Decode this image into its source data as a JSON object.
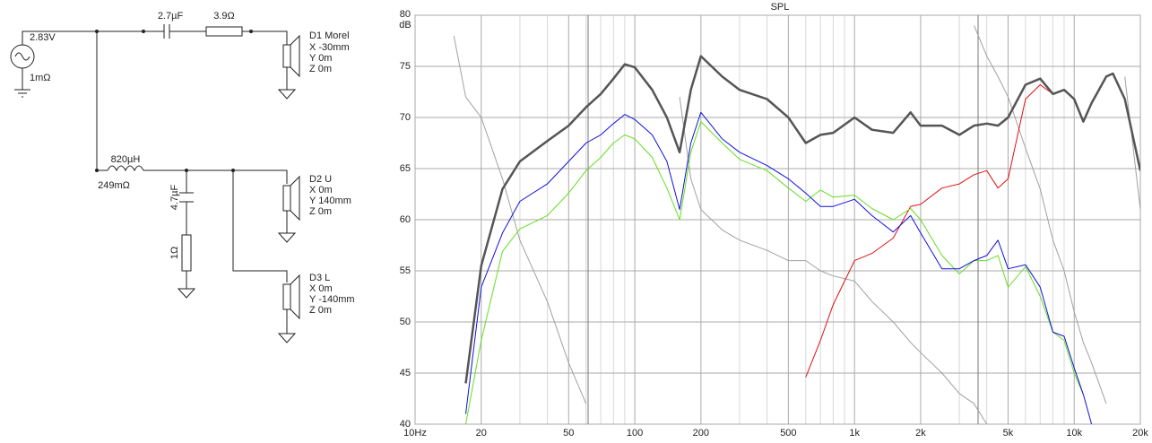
{
  "schematic": {
    "source": {
      "voltage": "2.83V",
      "resistance": "1mΩ"
    },
    "c1": "2.7µF",
    "r1": "3.9Ω",
    "l1": {
      "inductance": "820µH",
      "resistance": "249mΩ"
    },
    "c2": "4.7µF",
    "r2": "1Ω",
    "drivers": [
      {
        "name": "D1 Morel",
        "x": "X -30mm",
        "y": "Y 0m",
        "z": "Z 0m"
      },
      {
        "name": "D2 U",
        "x": "X 0m",
        "y": "Y 140mm",
        "z": "Z 0m"
      },
      {
        "name": "D3 L",
        "x": "X 0m",
        "y": "Y -140mm",
        "z": "Z 0m"
      }
    ]
  },
  "chart_data": {
    "type": "line",
    "title": "SPL",
    "y_label": "dB",
    "xscale": "log",
    "grid": true,
    "xlim": [
      10,
      20000
    ],
    "ylim": [
      40,
      80
    ],
    "xticks": [
      {
        "value": 10,
        "label": "10Hz"
      },
      20,
      50,
      100,
      200,
      500,
      {
        "value": 1000,
        "label": "1k"
      },
      {
        "value": 2000,
        "label": "2k"
      },
      {
        "value": 5000,
        "label": "5k"
      },
      {
        "value": 10000,
        "label": "10k"
      },
      {
        "value": 20000,
        "label": "20k"
      }
    ],
    "xminorticks": [
      30,
      40,
      60,
      70,
      80,
      90,
      300,
      400,
      600,
      700,
      800,
      900,
      3000,
      4000,
      6000,
      7000,
      8000,
      9000
    ],
    "yticks": [
      40,
      45,
      50,
      55,
      60,
      65,
      70,
      75,
      80
    ],
    "x": [
      15,
      17,
      20,
      25,
      30,
      40,
      50,
      60,
      70,
      80,
      90,
      100,
      120,
      140,
      160,
      180,
      200,
      250,
      300,
      400,
      500,
      600,
      700,
      800,
      1000,
      1200,
      1500,
      1800,
      2000,
      2500,
      3000,
      3500,
      4000,
      4500,
      5000,
      6000,
      7000,
      8000,
      9000,
      10000,
      11000,
      12000,
      14000,
      15000,
      17000,
      20000
    ],
    "series": [
      {
        "color": "#a0a0a0",
        "width": 1,
        "values": [
          78,
          72,
          70,
          64,
          58,
          52,
          46,
          42,
          null,
          null,
          null,
          null,
          null,
          null,
          72,
          64,
          61,
          59,
          58,
          57,
          56,
          56,
          55,
          54.5,
          54,
          52,
          50,
          48,
          47,
          45,
          43,
          42,
          40,
          null,
          null,
          null,
          null,
          null,
          null,
          null,
          null,
          null,
          null,
          null,
          null,
          null
        ]
      },
      {
        "color": "#a0a0a0",
        "width": 1,
        "values": [
          null,
          null,
          null,
          null,
          null,
          null,
          null,
          null,
          null,
          null,
          null,
          null,
          null,
          null,
          null,
          null,
          null,
          null,
          null,
          null,
          null,
          null,
          null,
          null,
          null,
          null,
          null,
          null,
          null,
          null,
          null,
          79,
          76,
          74,
          72,
          67,
          63,
          58,
          55,
          51,
          48,
          46,
          42,
          null,
          74,
          61
        ]
      },
      {
        "color": "#e01010",
        "width": 1,
        "values": [
          null,
          null,
          null,
          null,
          null,
          null,
          null,
          null,
          null,
          null,
          null,
          null,
          null,
          null,
          null,
          null,
          null,
          null,
          null,
          null,
          null,
          44.6,
          48.2,
          51.7,
          56,
          56.7,
          58.2,
          61.3,
          61.5,
          63.1,
          63.5,
          64.4,
          64.8,
          63.1,
          64,
          71.8,
          73.2,
          72.3,
          72.7,
          71.8,
          69.6,
          71.4,
          74,
          74.3,
          71.8,
          64.8
        ]
      },
      {
        "color": "#66dd22",
        "width": 1,
        "values": [
          null,
          40,
          48.2,
          56.9,
          59.1,
          60.4,
          62.6,
          64.8,
          66.1,
          67.5,
          68.3,
          67.9,
          66.1,
          63.1,
          60,
          66.6,
          69.6,
          67.5,
          65.9,
          64.8,
          63.1,
          61.8,
          62.9,
          62.2,
          62.4,
          61.1,
          60,
          61.1,
          60,
          56.5,
          54.7,
          56,
          56,
          56.5,
          53.4,
          55.4,
          52.5,
          49,
          48.2,
          45,
          42.9,
          null,
          null,
          null,
          null,
          null
        ]
      },
      {
        "color": "#1010dd",
        "width": 1,
        "values": [
          null,
          41,
          53.4,
          58.7,
          61.8,
          63.5,
          65.7,
          67.5,
          68.3,
          69.4,
          70.3,
          69.8,
          68.3,
          65.7,
          61,
          67.5,
          70.5,
          67.9,
          66.6,
          65.3,
          64,
          62.6,
          61.3,
          61.3,
          62,
          60.4,
          58.8,
          60.4,
          58.7,
          55.2,
          55.2,
          56,
          56.5,
          58,
          55.2,
          55.6,
          53.4,
          49,
          48.6,
          45.5,
          42.9,
          40,
          null,
          null,
          null,
          null
        ]
      },
      {
        "color": "#555555",
        "width": 2.5,
        "values": [
          null,
          44,
          55.5,
          63,
          65.7,
          67.7,
          69.2,
          71,
          72.3,
          73.8,
          75.2,
          74.9,
          72.7,
          70,
          66.6,
          72.7,
          76,
          74,
          72.7,
          71.8,
          70,
          67.5,
          68.3,
          68.5,
          70,
          68.8,
          68.5,
          70.5,
          69.2,
          69.2,
          68.3,
          69.2,
          69.4,
          69.2,
          70,
          73.2,
          73.8,
          72.3,
          72.7,
          71.8,
          69.6,
          71.4,
          74,
          74.3,
          71.8,
          64.8
        ]
      }
    ]
  }
}
